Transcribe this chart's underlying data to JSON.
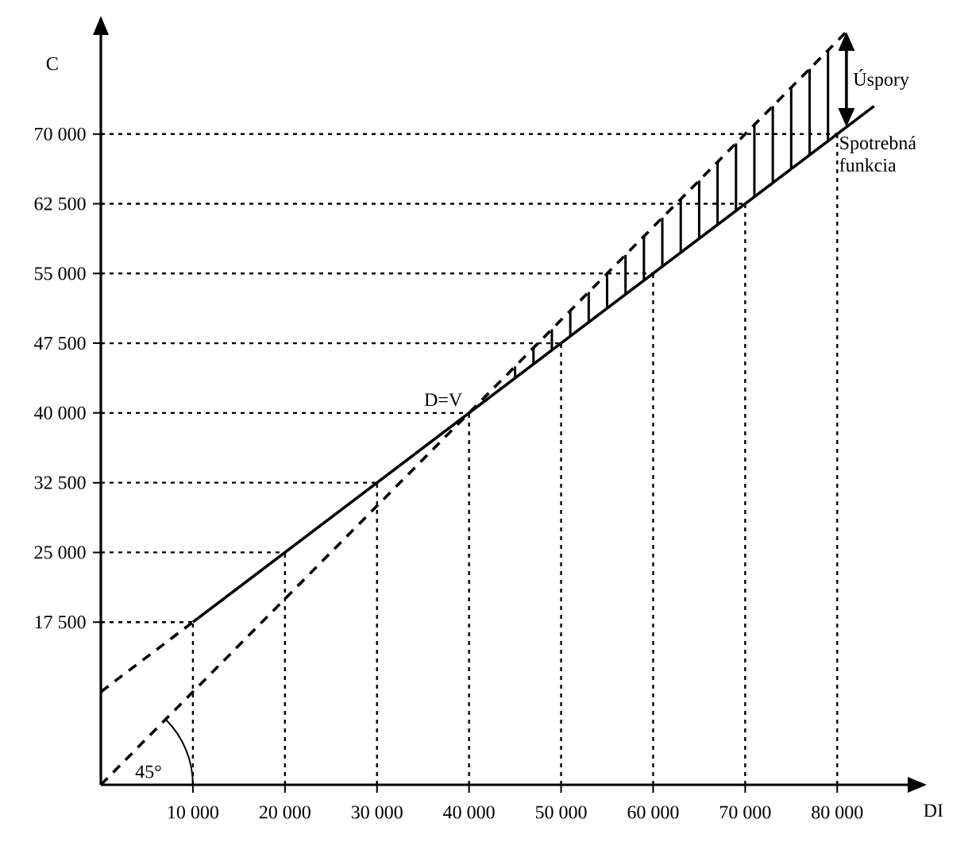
{
  "chart_data": {
    "type": "line",
    "xlabel": "DI",
    "ylabel": "C",
    "xlim": [
      0,
      88000
    ],
    "ylim": [
      0,
      81000
    ],
    "xticks": [
      {
        "value": 10000,
        "label": "10 000"
      },
      {
        "value": 20000,
        "label": "20 000"
      },
      {
        "value": 30000,
        "label": "30 000"
      },
      {
        "value": 40000,
        "label": "40 000"
      },
      {
        "value": 50000,
        "label": "50 000"
      },
      {
        "value": 60000,
        "label": "60 000"
      },
      {
        "value": 70000,
        "label": "70 000"
      },
      {
        "value": 80000,
        "label": "80 000"
      }
    ],
    "yticks": [
      {
        "value": 17500,
        "label": "17 500"
      },
      {
        "value": 25000,
        "label": "25 000"
      },
      {
        "value": 32500,
        "label": "32 500"
      },
      {
        "value": 40000,
        "label": "40 000"
      },
      {
        "value": 47500,
        "label": "47 500"
      },
      {
        "value": 55000,
        "label": "55 000"
      },
      {
        "value": 62500,
        "label": "62 500"
      },
      {
        "value": 70000,
        "label": "70 000"
      }
    ],
    "legend": "right",
    "marker": "none",
    "series": [
      {
        "name": "Spotrebná funkcia",
        "color": "#000000",
        "line_style": "solid",
        "x": [
          10000,
          84000
        ],
        "values": [
          17500,
          73000
        ]
      },
      {
        "color": "#000000",
        "line_style": "dashed",
        "x": [
          0,
          10000
        ],
        "values": [
          10000,
          17500
        ]
      },
      {
        "color": "#000000",
        "line_style": "dashed",
        "x": [
          0,
          81000
        ],
        "values": [
          0,
          81000
        ]
      },
      {
        "type": "bar",
        "color": "#000000",
        "x": [
          45000,
          47000,
          49000,
          51000,
          53000,
          55000,
          57000,
          59000,
          61000,
          63000,
          65000,
          67000,
          69000,
          71000,
          73000,
          75000,
          77000,
          79000
        ],
        "base": [
          43750,
          45250,
          46750,
          48250,
          49750,
          51250,
          52750,
          54250,
          55750,
          57250,
          58750,
          60250,
          61750,
          63250,
          64750,
          66250,
          67750,
          69250
        ],
        "values": [
          1250,
          1750,
          2250,
          2750,
          3250,
          3750,
          4250,
          4750,
          5250,
          5750,
          6250,
          6750,
          7250,
          7750,
          8250,
          8750,
          9250,
          9750
        ]
      },
      {
        "color": "#000000",
        "line_style": "dotted",
        "x": [
          10000,
          10000
        ],
        "values": [
          0,
          17500
        ]
      },
      {
        "color": "#000000",
        "line_style": "dotted",
        "x": [
          20000,
          20000
        ],
        "values": [
          0,
          25000
        ]
      },
      {
        "color": "#000000",
        "line_style": "dotted",
        "x": [
          30000,
          30000
        ],
        "values": [
          0,
          32500
        ]
      },
      {
        "color": "#000000",
        "line_style": "dotted",
        "x": [
          40000,
          40000
        ],
        "values": [
          0,
          40000
        ]
      },
      {
        "color": "#000000",
        "line_style": "dotted",
        "x": [
          50000,
          50000
        ],
        "values": [
          0,
          47500
        ]
      },
      {
        "color": "#000000",
        "line_style": "dotted",
        "x": [
          60000,
          60000
        ],
        "values": [
          0,
          55000
        ]
      },
      {
        "color": "#000000",
        "line_style": "dotted",
        "x": [
          70000,
          70000
        ],
        "values": [
          0,
          62500
        ]
      },
      {
        "color": "#000000",
        "line_style": "dotted",
        "x": [
          80000,
          80000
        ],
        "values": [
          0,
          70000
        ]
      },
      {
        "color": "#000000",
        "line_style": "dotted",
        "x": [
          0,
          10000
        ],
        "values": [
          17500,
          17500
        ]
      },
      {
        "color": "#000000",
        "line_style": "dotted",
        "x": [
          0,
          20000
        ],
        "values": [
          25000,
          25000
        ]
      },
      {
        "color": "#000000",
        "line_style": "dotted",
        "x": [
          0,
          30000
        ],
        "values": [
          32500,
          32500
        ]
      },
      {
        "color": "#000000",
        "line_style": "dotted",
        "x": [
          0,
          40000
        ],
        "values": [
          40000,
          40000
        ]
      },
      {
        "color": "#000000",
        "line_style": "dotted",
        "x": [
          0,
          50000
        ],
        "values": [
          47500,
          47500
        ]
      },
      {
        "color": "#000000",
        "line_style": "dotted",
        "x": [
          0,
          60000
        ],
        "values": [
          55000,
          55000
        ]
      },
      {
        "color": "#000000",
        "line_style": "dotted",
        "x": [
          0,
          70000
        ],
        "values": [
          62500,
          62500
        ]
      },
      {
        "color": "#000000",
        "line_style": "dotted",
        "x": [
          0,
          80000
        ],
        "values": [
          70000,
          70000
        ]
      }
    ],
    "annotations": [
      {
        "text": "D=V",
        "x": 40000,
        "y": 40000
      },
      "Úspory",
      {
        "text": "45°",
        "x": 0,
        "y": 0
      }
    ]
  }
}
